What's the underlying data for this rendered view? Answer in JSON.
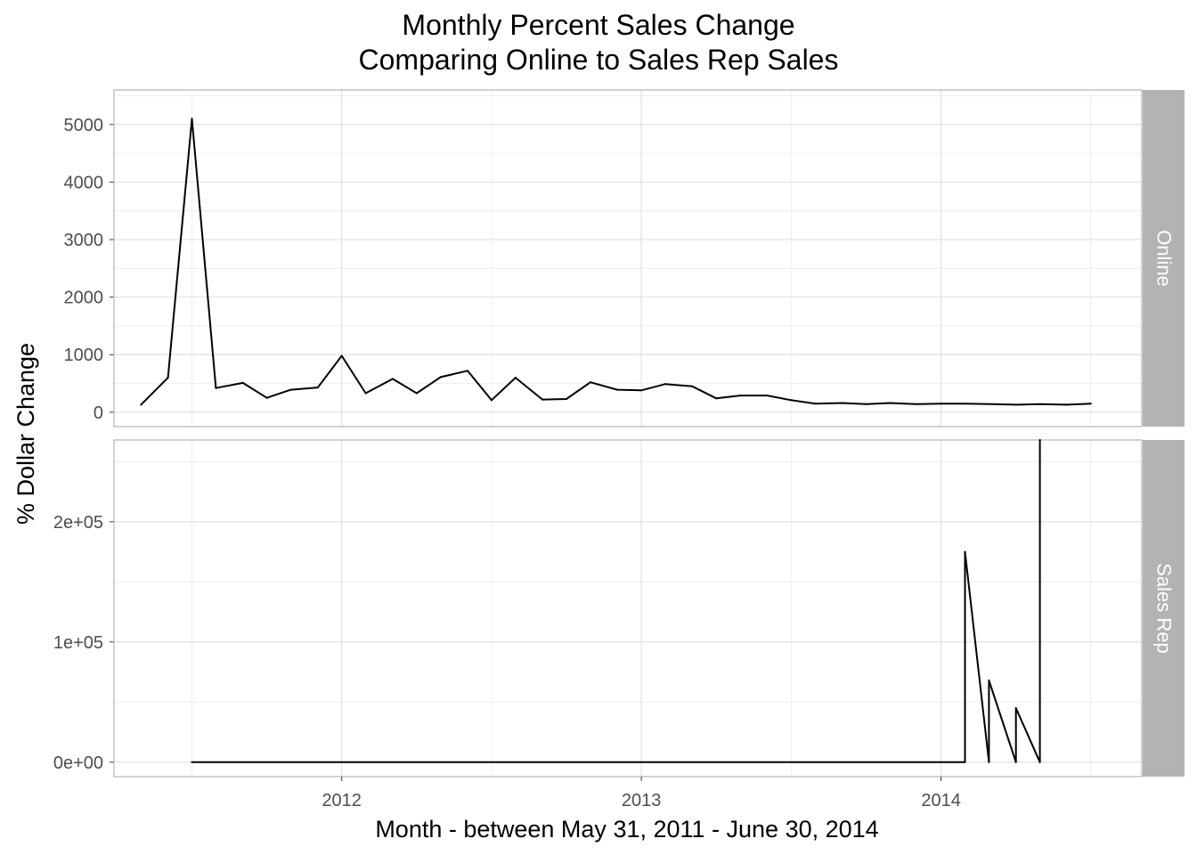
{
  "chart_data": {
    "type": "line",
    "title": "Monthly Percent Sales Change",
    "subtitle": "Comparing Online to Sales Rep Sales",
    "xlabel": "Month - between May 31, 2011 - June 30, 2014",
    "ylabel": "% Dollar Change",
    "x_ticks": [
      {
        "label": "2012",
        "value": 2012.0
      },
      {
        "label": "2013",
        "value": 2013.0
      },
      {
        "label": "2014",
        "value": 2014.0
      }
    ],
    "xlim": [
      2011.24,
      2014.67
    ],
    "grid": true,
    "legend": "none",
    "panels": [
      {
        "name": "Online",
        "ylim": [
          -250,
          5600
        ],
        "y_ticks": [
          {
            "label": "0",
            "value": 0
          },
          {
            "label": "1000",
            "value": 1000
          },
          {
            "label": "2000",
            "value": 2000
          },
          {
            "label": "3000",
            "value": 3000
          },
          {
            "label": "4000",
            "value": 4000
          },
          {
            "label": "5000",
            "value": 5000
          }
        ],
        "x": [
          2011.33,
          2011.42,
          2011.5,
          2011.58,
          2011.67,
          2011.75,
          2011.83,
          2011.92,
          2012.0,
          2012.08,
          2012.17,
          2012.25,
          2012.33,
          2012.42,
          2012.5,
          2012.58,
          2012.67,
          2012.75,
          2012.83,
          2012.92,
          2013.0,
          2013.08,
          2013.17,
          2013.25,
          2013.33,
          2013.42,
          2013.5,
          2013.58,
          2013.67,
          2013.75,
          2013.83,
          2013.92,
          2014.0,
          2014.08,
          2014.17,
          2014.25,
          2014.33,
          2014.42,
          2014.5
        ],
        "values": [
          130,
          600,
          5100,
          420,
          510,
          250,
          390,
          430,
          980,
          330,
          580,
          330,
          610,
          720,
          210,
          600,
          220,
          230,
          520,
          390,
          380,
          490,
          450,
          240,
          290,
          290,
          210,
          150,
          160,
          140,
          160,
          140,
          150,
          150,
          140,
          130,
          140,
          130,
          150
        ]
      },
      {
        "name": "Sales Rep",
        "ylim": [
          -12000,
          268000
        ],
        "y_ticks": [
          {
            "label": "0e+00",
            "value": 0
          },
          {
            "label": "1e+05",
            "value": 100000
          },
          {
            "label": "2e+05",
            "value": 200000
          }
        ],
        "x": [
          2011.5,
          2014.08,
          2014.08,
          2014.16,
          2014.16,
          2014.25,
          2014.25,
          2014.33,
          2014.33
        ],
        "values": [
          0,
          0,
          175000,
          0,
          68000,
          0,
          45000,
          0,
          268000
        ]
      }
    ]
  }
}
